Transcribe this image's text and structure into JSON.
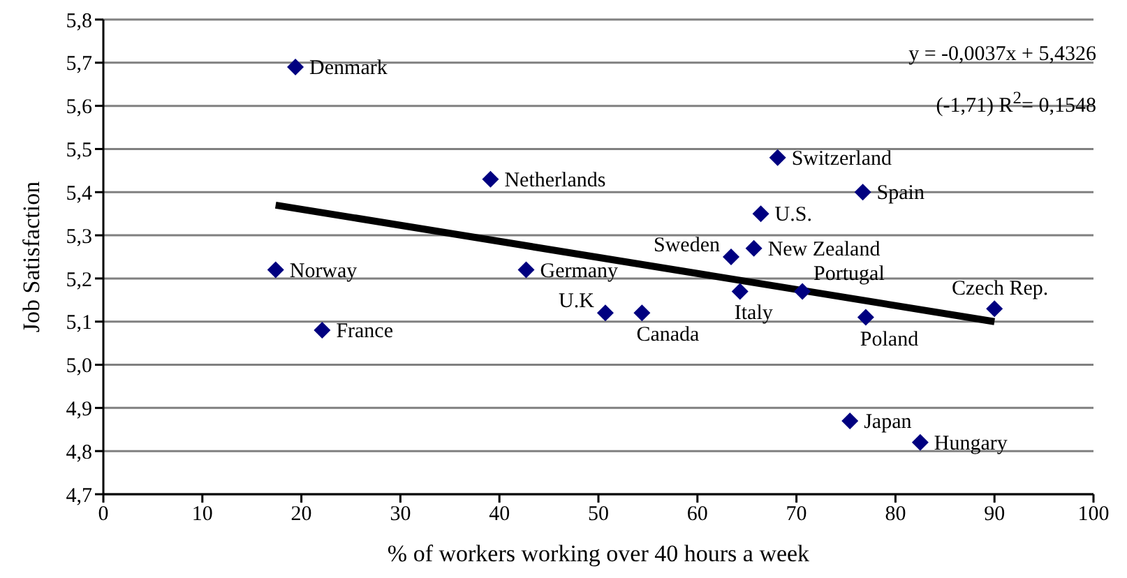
{
  "chart_data": {
    "type": "scatter",
    "xlabel": "% of workers working over 40 hours a week",
    "ylabel": "Job Satisfaction",
    "xlim": [
      0,
      100
    ],
    "xticks": [
      0,
      10,
      20,
      30,
      40,
      50,
      60,
      70,
      80,
      90,
      100
    ],
    "ylim": [
      4.7,
      5.8
    ],
    "yticks": [
      {
        "value": 4.7,
        "label": "4,7"
      },
      {
        "value": 4.8,
        "label": "4,8"
      },
      {
        "value": 4.9,
        "label": "4,9"
      },
      {
        "value": 5.0,
        "label": "5,0"
      },
      {
        "value": 5.1,
        "label": "5,1"
      },
      {
        "value": 5.2,
        "label": "5,2"
      },
      {
        "value": 5.3,
        "label": "5,3"
      },
      {
        "value": 5.4,
        "label": "5,4"
      },
      {
        "value": 5.5,
        "label": "5,5"
      },
      {
        "value": 5.6,
        "label": "5,6"
      },
      {
        "value": 5.7,
        "label": "5,7"
      },
      {
        "value": 5.8,
        "label": "5,8"
      }
    ],
    "grid": "y",
    "marker": "diamond",
    "legend": false,
    "series": [
      {
        "color": "#000080",
        "x": [
          19.4,
          39.1,
          17.4,
          42.7,
          22.1,
          50.7,
          54.4,
          63.4,
          65.7,
          66.4,
          68.1,
          76.7,
          64.3,
          70.6,
          77.0,
          90.0,
          75.4,
          82.5
        ],
        "values": [
          5.69,
          5.43,
          5.22,
          5.22,
          5.08,
          5.12,
          5.12,
          5.25,
          5.27,
          5.35,
          5.48,
          5.4,
          5.17,
          5.17,
          5.11,
          5.13,
          4.87,
          4.82
        ],
        "value_labels": [
          "Denmark",
          "Netherlands",
          "Norway",
          "Germany",
          "France",
          "U.K",
          "Canada",
          "Sweden",
          "New Zealand",
          "U.S.",
          "Switzerland",
          "Spain",
          "Italy",
          "Portugal",
          "Poland",
          "Czech Rep.",
          "Japan",
          "Hungary"
        ]
      },
      {
        "type": "line",
        "color": "#000000",
        "x": [
          17.4,
          90.0
        ],
        "values": [
          5.37,
          5.1
        ],
        "marker": "none",
        "line_style": "solid"
      }
    ],
    "annotations": [
      "y = -0,0037x + 5,4326",
      "(-1,71) R$^{2}$= 0,1548"
    ]
  }
}
